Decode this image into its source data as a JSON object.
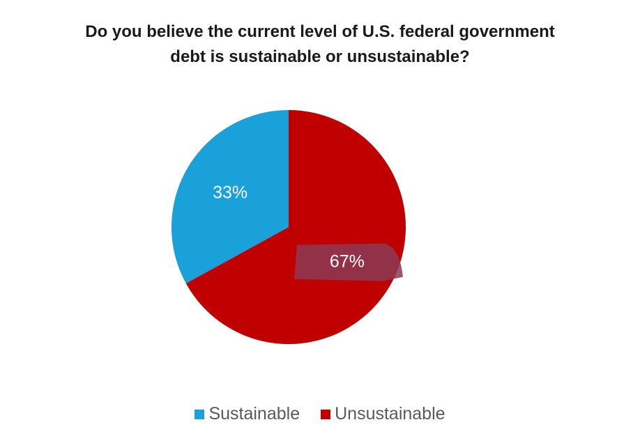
{
  "chart_data": {
    "type": "pie",
    "title": "Do you believe the current level of U.S. federal government\ndebt is sustainable or unsustainable?",
    "categories": [
      "Sustainable",
      "Unsustainable"
    ],
    "values": [
      33,
      67
    ],
    "data_labels": [
      "33%",
      "67%"
    ],
    "colors": [
      "#1aa1da",
      "#c00000"
    ],
    "highlight_color": "#8a3a55",
    "legend_position": "bottom",
    "start_angle": "12 o'clock",
    "direction": "counterclockwise"
  }
}
